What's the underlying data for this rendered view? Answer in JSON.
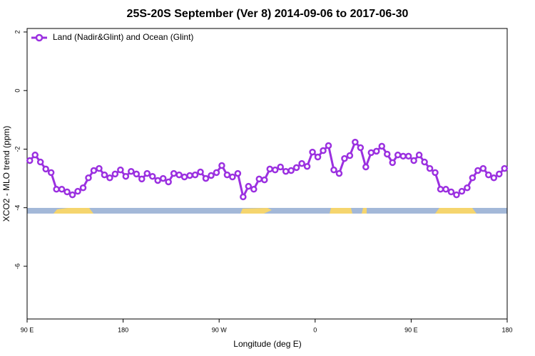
{
  "chart_data": {
    "type": "line",
    "title": "25S-20S September (Ver 8)   2014-09-06 to 2017-06-30",
    "x_label": "Longitude (deg E)",
    "y_label": "XCO2 - MLO trend (ppm)",
    "xlim": [
      90,
      540
    ],
    "ylim": [
      -7.8,
      2.12
    ],
    "xticks": [
      {
        "value": 90,
        "label": "90 E"
      },
      180,
      {
        "value": 270,
        "label": "90 W"
      },
      {
        "value": 360,
        "label": "0"
      },
      {
        "value": 450,
        "label": "90 E"
      },
      {
        "value": 540,
        "label": "180"
      }
    ],
    "yticks": [
      2,
      0,
      -2,
      -4,
      -6
    ],
    "legend_position": "top-left",
    "series": [
      {
        "name": "Land (Nadir&Glint) and Ocean (Glint)",
        "color": "#9b30e0",
        "x": [
          92.5,
          97.5,
          102.5,
          107.5,
          112.5,
          117.5,
          122.5,
          127.5,
          132.5,
          137.5,
          142.5,
          147.5,
          152.5,
          157.5,
          162.5,
          167.5,
          172.5,
          177.5,
          182.5,
          187.5,
          192.5,
          197.5,
          202.5,
          207.5,
          212.5,
          217.5,
          222.5,
          227.5,
          232.5,
          237.5,
          242.5,
          247.5,
          252.5,
          257.5,
          262.5,
          267.5,
          272.5,
          277.5,
          282.5,
          287.5,
          292.5,
          297.5,
          302.5,
          307.5,
          312.5,
          317.5,
          322.5,
          327.5,
          332.5,
          337.5,
          342.5,
          347.5,
          352.5,
          357.5,
          362.5,
          367.5,
          372.5,
          377.5,
          382.5,
          387.5,
          392.5,
          397.5,
          402.5,
          407.5,
          412.5,
          417.5,
          422.5,
          427.5,
          432.5,
          437.5,
          442.5,
          447.5,
          452.5,
          457.5,
          462.5,
          467.5,
          472.5,
          477.5,
          482.5,
          487.5,
          492.5,
          497.5,
          502.5,
          507.5,
          512.5,
          517.5,
          522.5,
          527.5,
          532.5,
          537.5
        ],
        "values": [
          -2.39,
          -2.2,
          -2.44,
          -2.68,
          -2.8,
          -3.37,
          -3.37,
          -3.46,
          -3.56,
          -3.44,
          -3.32,
          -2.98,
          -2.73,
          -2.66,
          -2.88,
          -2.98,
          -2.85,
          -2.71,
          -2.93,
          -2.76,
          -2.85,
          -3.02,
          -2.83,
          -2.93,
          -3.07,
          -3.0,
          -3.12,
          -2.83,
          -2.88,
          -2.95,
          -2.9,
          -2.88,
          -2.78,
          -3.0,
          -2.9,
          -2.8,
          -2.56,
          -2.88,
          -2.95,
          -2.83,
          -3.63,
          -3.27,
          -3.37,
          -3.02,
          -3.05,
          -2.68,
          -2.71,
          -2.61,
          -2.76,
          -2.73,
          -2.63,
          -2.49,
          -2.59,
          -2.1,
          -2.27,
          -2.05,
          -1.88,
          -2.71,
          -2.83,
          -2.32,
          -2.22,
          -1.76,
          -1.95,
          -2.61,
          -2.12,
          -2.07,
          -1.9,
          -2.17,
          -2.46,
          -2.2,
          -2.24,
          -2.24,
          -2.39,
          -2.2,
          -2.44,
          -2.66,
          -2.8,
          -3.37,
          -3.37,
          -3.46,
          -3.56,
          -3.44,
          -3.32,
          -2.98,
          -2.73,
          -2.66,
          -2.88,
          -2.98,
          -2.85,
          -2.66
        ]
      }
    ]
  }
}
